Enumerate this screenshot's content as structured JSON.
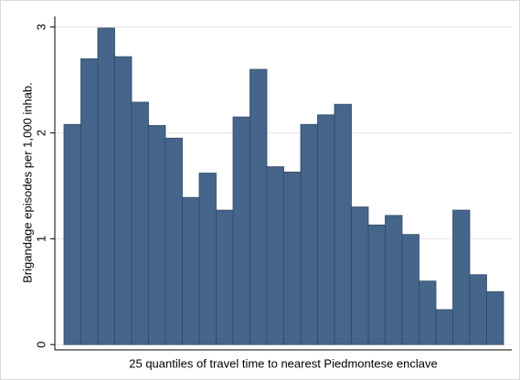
{
  "chart_data": {
    "type": "bar",
    "xlabel": "25 quantiles of travel time to nearest Piedmontese enclave",
    "ylabel": "Brigandage episodes per 1,000 inhab.",
    "categories": [
      null,
      null,
      null,
      null,
      null,
      null,
      null,
      null,
      null,
      null,
      null,
      null,
      null,
      null,
      null,
      null,
      null,
      null,
      null,
      null,
      null,
      null,
      null,
      null,
      null,
      null
    ],
    "values": [
      2.08,
      2.7,
      2.99,
      2.72,
      2.29,
      2.07,
      1.95,
      1.39,
      1.62,
      1.27,
      2.15,
      2.6,
      1.68,
      1.63,
      2.08,
      2.17,
      2.27,
      1.3,
      1.13,
      1.22,
      1.04,
      0.6,
      0.33,
      1.27,
      0.66,
      0.5
    ],
    "color": "#46658a",
    "ylim": [
      -0.05,
      3.1
    ],
    "yticks": [
      0,
      1,
      2,
      3
    ],
    "grid": true
  }
}
